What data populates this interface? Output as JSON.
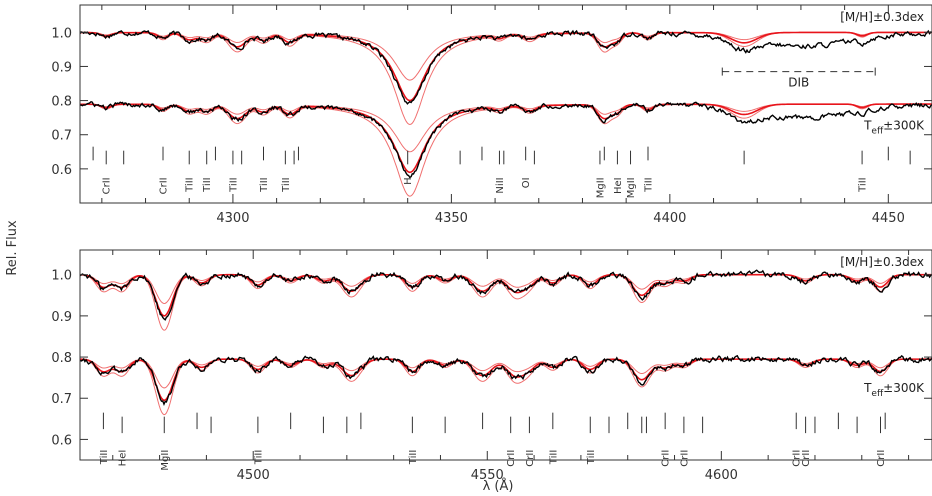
{
  "ylabel": "Rel. Flux",
  "xlabel": "λ (Å)",
  "colors": {
    "observed": "#000000",
    "model": "#e8141b",
    "model_light": "#f07070",
    "axis": "#333333"
  },
  "chart_data": [
    {
      "type": "line",
      "panel": "top",
      "xlim": [
        4265,
        4460
      ],
      "ylim": [
        0.5,
        1.08
      ],
      "xticks": [
        4300,
        4350,
        4400,
        4450
      ],
      "yticks": [
        0.6,
        0.7,
        0.8,
        0.9,
        1.0
      ],
      "annotations": {
        "metal": "[M/H]±0.3dex",
        "teff": "T",
        "teff_sub": "eff",
        "teff_rest": "±300K",
        "dib": "DIB"
      },
      "dib_range": [
        4412,
        4447
      ],
      "upper_offset": 1.0,
      "lower_offset": 0.79,
      "lines": [
        {
          "wl": 4268,
          "label": ""
        },
        {
          "wl": 4271,
          "label": "CrII"
        },
        {
          "wl": 4275,
          "label": ""
        },
        {
          "wl": 4284,
          "label": "CrII"
        },
        {
          "wl": 4290,
          "label": "TiII"
        },
        {
          "wl": 4294,
          "label": "TiII"
        },
        {
          "wl": 4296,
          "label": ""
        },
        {
          "wl": 4300,
          "label": "TiII"
        },
        {
          "wl": 4302,
          "label": ""
        },
        {
          "wl": 4307,
          "label": "TiII"
        },
        {
          "wl": 4312,
          "label": "TiII"
        },
        {
          "wl": 4314,
          "label": ""
        },
        {
          "wl": 4315,
          "label": ""
        },
        {
          "wl": 4340,
          "label": "H"
        },
        {
          "wl": 4352,
          "label": ""
        },
        {
          "wl": 4357,
          "label": ""
        },
        {
          "wl": 4361,
          "label": "NiII"
        },
        {
          "wl": 4362,
          "label": ""
        },
        {
          "wl": 4367,
          "label": "OI"
        },
        {
          "wl": 4369,
          "label": ""
        },
        {
          "wl": 4384,
          "label": "MgII"
        },
        {
          "wl": 4385,
          "label": ""
        },
        {
          "wl": 4388,
          "label": "HeI"
        },
        {
          "wl": 4391,
          "label": "MgII"
        },
        {
          "wl": 4395,
          "label": "TiII"
        },
        {
          "wl": 4417,
          "label": ""
        },
        {
          "wl": 4444,
          "label": "TiII"
        },
        {
          "wl": 4450,
          "label": ""
        },
        {
          "wl": 4455,
          "label": ""
        }
      ],
      "features": [
        {
          "wl": 4271,
          "d": 0.01,
          "w": 1.2
        },
        {
          "wl": 4284,
          "d": 0.015,
          "w": 1.2
        },
        {
          "wl": 4290,
          "d": 0.02,
          "w": 1.5
        },
        {
          "wl": 4294,
          "d": 0.02,
          "w": 1.5
        },
        {
          "wl": 4301,
          "d": 0.04,
          "w": 2.0
        },
        {
          "wl": 4307,
          "d": 0.02,
          "w": 1.5
        },
        {
          "wl": 4313,
          "d": 0.025,
          "w": 1.5
        },
        {
          "wl": 4340.5,
          "d": 0.2,
          "w": 2.8
        },
        {
          "wl": 4361,
          "d": 0.01,
          "w": 1.2
        },
        {
          "wl": 4368,
          "d": 0.015,
          "w": 1.5
        },
        {
          "wl": 4385,
          "d": 0.04,
          "w": 1.5
        },
        {
          "wl": 4388,
          "d": 0.02,
          "w": 1.2
        },
        {
          "wl": 4395,
          "d": 0.015,
          "w": 1.2
        },
        {
          "wl": 4417,
          "d": 0.03,
          "w": 3.0
        },
        {
          "wl": 4444,
          "d": 0.01,
          "w": 1.2
        }
      ],
      "dib": {
        "center": 4430,
        "width": 12,
        "depth": 0.04
      }
    },
    {
      "type": "line",
      "panel": "bottom",
      "xlim": [
        4463,
        4645
      ],
      "ylim": [
        0.55,
        1.06
      ],
      "xticks": [
        4500,
        4550,
        4600
      ],
      "yticks": [
        0.6,
        0.7,
        0.8,
        0.9,
        1.0
      ],
      "annotations": {
        "metal": "[M/H]±0.3dex",
        "teff": "T",
        "teff_sub": "eff",
        "teff_rest": "±300K"
      },
      "upper_offset": 1.0,
      "lower_offset": 0.795,
      "lines": [
        {
          "wl": 4468,
          "label": "TiII"
        },
        {
          "wl": 4472,
          "label": "HeI"
        },
        {
          "wl": 4481,
          "label": "MgII"
        },
        {
          "wl": 4488,
          "label": ""
        },
        {
          "wl": 4491,
          "label": ""
        },
        {
          "wl": 4501,
          "label": "TiII"
        },
        {
          "wl": 4508,
          "label": ""
        },
        {
          "wl": 4515,
          "label": ""
        },
        {
          "wl": 4520,
          "label": ""
        },
        {
          "wl": 4523,
          "label": ""
        },
        {
          "wl": 4534,
          "label": "TiII"
        },
        {
          "wl": 4541,
          "label": ""
        },
        {
          "wl": 4549,
          "label": ""
        },
        {
          "wl": 4555,
          "label": "CrII"
        },
        {
          "wl": 4559,
          "label": "CrII"
        },
        {
          "wl": 4564,
          "label": "TiII"
        },
        {
          "wl": 4572,
          "label": "TiII"
        },
        {
          "wl": 4576,
          "label": ""
        },
        {
          "wl": 4580,
          "label": ""
        },
        {
          "wl": 4583,
          "label": ""
        },
        {
          "wl": 4584,
          "label": ""
        },
        {
          "wl": 4588,
          "label": "CrII"
        },
        {
          "wl": 4592,
          "label": "CrII"
        },
        {
          "wl": 4596,
          "label": ""
        },
        {
          "wl": 4616,
          "label": "CrII"
        },
        {
          "wl": 4618,
          "label": "CrII"
        },
        {
          "wl": 4620,
          "label": ""
        },
        {
          "wl": 4625,
          "label": ""
        },
        {
          "wl": 4629,
          "label": ""
        },
        {
          "wl": 4634,
          "label": "CrII"
        },
        {
          "wl": 4635,
          "label": ""
        }
      ],
      "features": [
        {
          "wl": 4468,
          "d": 0.03,
          "w": 1.5
        },
        {
          "wl": 4472,
          "d": 0.03,
          "w": 1.5
        },
        {
          "wl": 4481,
          "d": 0.1,
          "w": 1.8
        },
        {
          "wl": 4489,
          "d": 0.02,
          "w": 1.5
        },
        {
          "wl": 4501,
          "d": 0.025,
          "w": 1.5
        },
        {
          "wl": 4508,
          "d": 0.015,
          "w": 1.5
        },
        {
          "wl": 4515,
          "d": 0.015,
          "w": 1.5
        },
        {
          "wl": 4521,
          "d": 0.04,
          "w": 2.0
        },
        {
          "wl": 4534,
          "d": 0.03,
          "w": 1.5
        },
        {
          "wl": 4541,
          "d": 0.015,
          "w": 1.5
        },
        {
          "wl": 4549,
          "d": 0.04,
          "w": 2.0
        },
        {
          "wl": 4556,
          "d": 0.04,
          "w": 1.8
        },
        {
          "wl": 4559,
          "d": 0.02,
          "w": 1.5
        },
        {
          "wl": 4564,
          "d": 0.02,
          "w": 1.5
        },
        {
          "wl": 4572,
          "d": 0.025,
          "w": 1.5
        },
        {
          "wl": 4583,
          "d": 0.05,
          "w": 1.8
        },
        {
          "wl": 4588,
          "d": 0.02,
          "w": 1.5
        },
        {
          "wl": 4592,
          "d": 0.015,
          "w": 1.5
        },
        {
          "wl": 4618,
          "d": 0.015,
          "w": 1.5
        },
        {
          "wl": 4629,
          "d": 0.015,
          "w": 1.5
        },
        {
          "wl": 4634,
          "d": 0.03,
          "w": 1.5
        }
      ]
    }
  ]
}
